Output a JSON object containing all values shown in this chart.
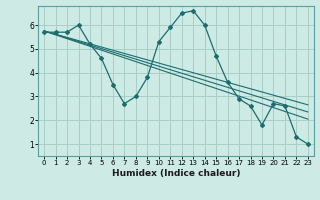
{
  "xlabel": "Humidex (Indice chaleur)",
  "xlim": [
    -0.5,
    23.5
  ],
  "ylim": [
    0.5,
    6.8
  ],
  "yticks": [
    1,
    2,
    3,
    4,
    5,
    6
  ],
  "xticks": [
    0,
    1,
    2,
    3,
    4,
    5,
    6,
    7,
    8,
    9,
    10,
    11,
    12,
    13,
    14,
    15,
    16,
    17,
    18,
    19,
    20,
    21,
    22,
    23
  ],
  "bg_color": "#ceeae4",
  "grid_color": "#a8cec8",
  "line_color": "#1a6e6e",
  "curve_x": [
    0,
    1,
    2,
    3,
    4,
    5,
    6,
    7,
    8,
    9,
    10,
    11,
    12,
    13,
    14,
    15,
    16,
    17,
    18,
    19,
    20,
    21,
    22,
    23
  ],
  "curve_y": [
    5.7,
    5.7,
    5.7,
    6.0,
    5.2,
    4.6,
    3.5,
    2.7,
    3.0,
    3.8,
    5.3,
    5.9,
    6.5,
    6.6,
    6.0,
    4.7,
    3.6,
    2.9,
    2.6,
    1.8,
    2.7,
    2.6,
    1.3,
    1.0
  ],
  "line1_x": [
    0,
    23
  ],
  "line1_y": [
    5.75,
    2.65
  ],
  "line2_x": [
    0,
    23
  ],
  "line2_y": [
    5.75,
    2.35
  ],
  "line3_x": [
    0,
    23
  ],
  "line3_y": [
    5.75,
    2.05
  ]
}
